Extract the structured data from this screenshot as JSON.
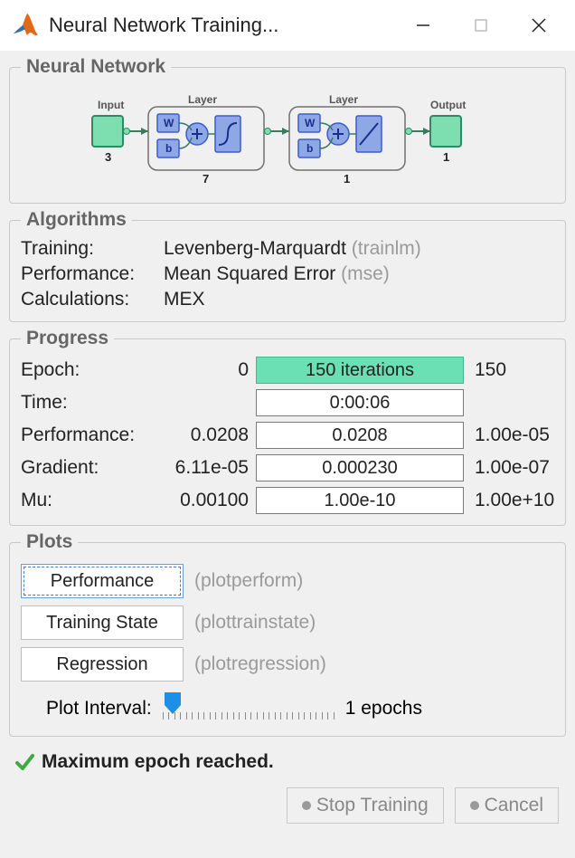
{
  "window": {
    "title": "Neural Network Training..."
  },
  "panels": {
    "network": {
      "legend": "Neural Network"
    },
    "algorithms": {
      "legend": "Algorithms"
    },
    "progress": {
      "legend": "Progress"
    },
    "plots": {
      "legend": "Plots"
    }
  },
  "network_diagram": {
    "input_label": "Input",
    "input_size": "3",
    "layer_label": "Layer",
    "layer1_size": "7",
    "layer2_size": "1",
    "output_label": "Output",
    "output_size": "1",
    "colors": {
      "io_fill": "#7ddfb0",
      "io_stroke": "#2e8a64",
      "block_fill": "#8ea8e6",
      "block_stroke": "#3b5bd0",
      "layer_box_stroke": "#707070",
      "wire": "#3b7a5c",
      "label": "#555555",
      "size_text": "#222222"
    }
  },
  "algorithms": {
    "rows": [
      {
        "label": "Training:",
        "value": "Levenberg-Marquardt",
        "paren": "(trainlm)"
      },
      {
        "label": "Performance:",
        "value": "Mean Squared Error",
        "paren": "(mse)"
      },
      {
        "label": "Calculations:",
        "value": "MEX",
        "paren": ""
      }
    ]
  },
  "progress": {
    "rows": [
      {
        "label": "Epoch:",
        "start": "0",
        "bar": "150 iterations",
        "end": "150",
        "filled": true
      },
      {
        "label": "Time:",
        "start": "",
        "bar": "0:00:06",
        "end": "",
        "filled": false
      },
      {
        "label": "Performance:",
        "start": "0.0208",
        "bar": "0.0208",
        "end": "1.00e-05",
        "filled": false
      },
      {
        "label": "Gradient:",
        "start": "6.11e-05",
        "bar": "0.000230",
        "end": "1.00e-07",
        "filled": false
      },
      {
        "label": "Mu:",
        "start": "0.00100",
        "bar": "1.00e-10",
        "end": "1.00e+10",
        "filled": false
      }
    ]
  },
  "plots": {
    "buttons": [
      {
        "label": "Performance",
        "hint": "(plotperform)",
        "focused": true
      },
      {
        "label": "Training State",
        "hint": "(plottrainstate)",
        "focused": false
      },
      {
        "label": "Regression",
        "hint": "(plotregression)",
        "focused": false
      }
    ],
    "interval_label": "Plot Interval:",
    "interval_value": "1 epochs",
    "slider": {
      "thumb_color": "#1f8fe6",
      "tick_count": 30
    }
  },
  "status": {
    "message": "Maximum epoch reached.",
    "check_color": "#3faa3f"
  },
  "buttons": {
    "stop": "Stop Training",
    "cancel": "Cancel"
  },
  "colors": {
    "panel_border": "#c8c8c8",
    "legend_text": "#666666",
    "hint_text": "#9a9a9a",
    "bar_fill": "#6be0b4",
    "bar_fill_border": "#41b98e",
    "bar_border": "#7a7a7a",
    "window_bg": "#f0f0f0"
  }
}
